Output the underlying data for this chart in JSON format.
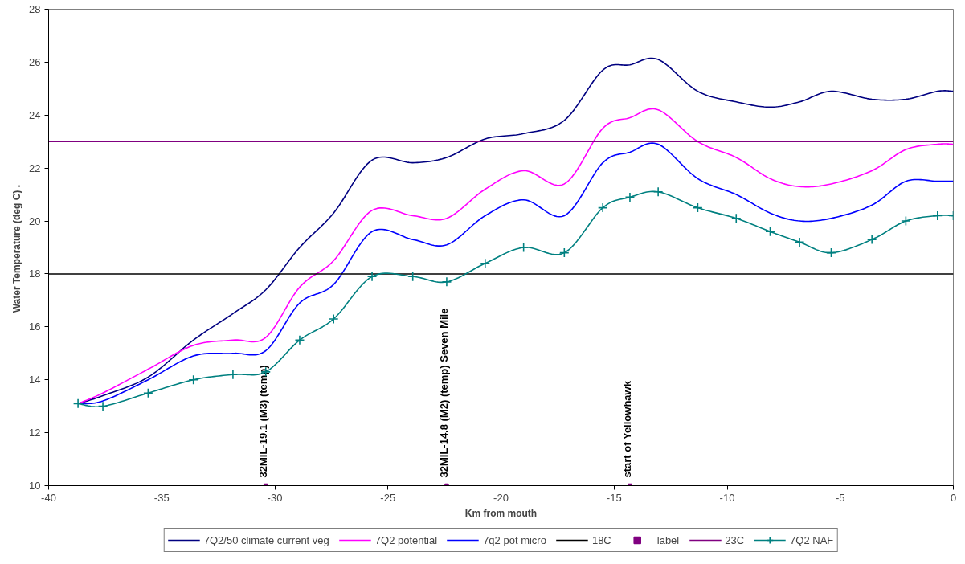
{
  "chart_data": {
    "type": "line",
    "xlabel": "Km from mouth",
    "ylabel": "Water Temperature (deg C)  .",
    "xlim": [
      -40,
      0
    ],
    "ylim": [
      10,
      28
    ],
    "xticks": [
      -40,
      -35,
      -30,
      -25,
      -20,
      -15,
      -10,
      -5,
      0
    ],
    "yticks": [
      10,
      12,
      14,
      16,
      18,
      20,
      22,
      24,
      26,
      28
    ],
    "grid": false,
    "legend": "bottom",
    "series": [
      {
        "name": "7Q2/50 climate current veg",
        "color": "#000080",
        "marker": "none",
        "x": [
          -38.7,
          -37.6,
          -35.6,
          -33.6,
          -31.85,
          -30.4,
          -28.9,
          -27.4,
          -25.7,
          -23.9,
          -22.4,
          -20.7,
          -19.0,
          -17.2,
          -15.5,
          -14.3,
          -13.05,
          -11.3,
          -9.6,
          -8.1,
          -6.8,
          -5.4,
          -3.6,
          -2.1,
          -0.7,
          0
        ],
        "values": [
          13.1,
          13.4,
          14.1,
          15.5,
          16.5,
          17.4,
          19.0,
          20.3,
          22.3,
          22.2,
          22.4,
          23.1,
          23.3,
          23.8,
          25.7,
          25.9,
          26.1,
          24.9,
          24.5,
          24.3,
          24.5,
          24.9,
          24.6,
          24.6,
          24.9,
          24.9
        ]
      },
      {
        "name": "7Q2 potential",
        "color": "#ff00ff",
        "marker": "none",
        "x": [
          -38.7,
          -37.6,
          -35.6,
          -33.6,
          -31.85,
          -30.4,
          -28.9,
          -27.4,
          -25.7,
          -23.9,
          -22.4,
          -20.7,
          -19.0,
          -17.2,
          -15.5,
          -14.3,
          -13.05,
          -11.3,
          -9.6,
          -8.1,
          -6.8,
          -5.4,
          -3.6,
          -2.1,
          -0.7,
          0
        ],
        "values": [
          13.1,
          13.5,
          14.4,
          15.3,
          15.5,
          15.6,
          17.5,
          18.5,
          20.4,
          20.2,
          20.1,
          21.2,
          21.9,
          21.4,
          23.5,
          23.9,
          24.2,
          23.0,
          22.4,
          21.6,
          21.3,
          21.4,
          21.9,
          22.7,
          22.9,
          22.9
        ]
      },
      {
        "name": "7q2 pot micro",
        "color": "#0000ff",
        "marker": "none",
        "x": [
          -38.7,
          -37.6,
          -35.6,
          -33.6,
          -31.85,
          -30.4,
          -28.9,
          -27.4,
          -25.7,
          -23.9,
          -22.4,
          -20.7,
          -19.0,
          -17.2,
          -15.5,
          -14.3,
          -13.05,
          -11.3,
          -9.6,
          -8.1,
          -6.8,
          -5.4,
          -3.6,
          -2.1,
          -0.7,
          0
        ],
        "values": [
          13.1,
          13.2,
          14.0,
          14.9,
          15.0,
          15.1,
          16.9,
          17.6,
          19.6,
          19.3,
          19.1,
          20.2,
          20.8,
          20.2,
          22.2,
          22.6,
          22.9,
          21.6,
          21.0,
          20.3,
          20.0,
          20.1,
          20.6,
          21.5,
          21.5,
          21.5
        ]
      },
      {
        "name": "18C",
        "color": "#000000",
        "marker": "none",
        "x": [
          -40,
          0
        ],
        "values": [
          18,
          18
        ]
      },
      {
        "name": "label",
        "type": "scatter",
        "color": "#800080",
        "marker": "square",
        "x": [
          -30.4,
          -22.4,
          -14.3
        ],
        "values": [
          10,
          10,
          10
        ],
        "value_labels": [
          "32MIL-19.1 (M3) (temp)",
          "32MIL-14.8 (M2) (temp) Seven Mile",
          "start of Yellowhawk"
        ]
      },
      {
        "name": "23C",
        "color": "#800080",
        "marker": "none",
        "x": [
          -40,
          0
        ],
        "values": [
          23,
          23
        ]
      },
      {
        "name": "7Q2 NAF",
        "color": "#008080",
        "marker": "cross",
        "x": [
          -38.7,
          -37.6,
          -35.6,
          -33.6,
          -31.85,
          -30.4,
          -28.9,
          -27.4,
          -25.7,
          -23.9,
          -22.4,
          -20.7,
          -19.0,
          -17.2,
          -15.5,
          -14.3,
          -13.05,
          -11.3,
          -9.6,
          -8.1,
          -6.8,
          -5.4,
          -3.6,
          -2.1,
          -0.7,
          0
        ],
        "values": [
          13.1,
          13.0,
          13.5,
          14.0,
          14.2,
          14.3,
          15.5,
          16.3,
          17.9,
          17.9,
          17.7,
          18.4,
          19.0,
          18.8,
          20.5,
          20.9,
          21.1,
          20.5,
          20.1,
          19.6,
          19.2,
          18.8,
          19.3,
          20.0,
          20.2,
          20.2
        ]
      }
    ]
  }
}
